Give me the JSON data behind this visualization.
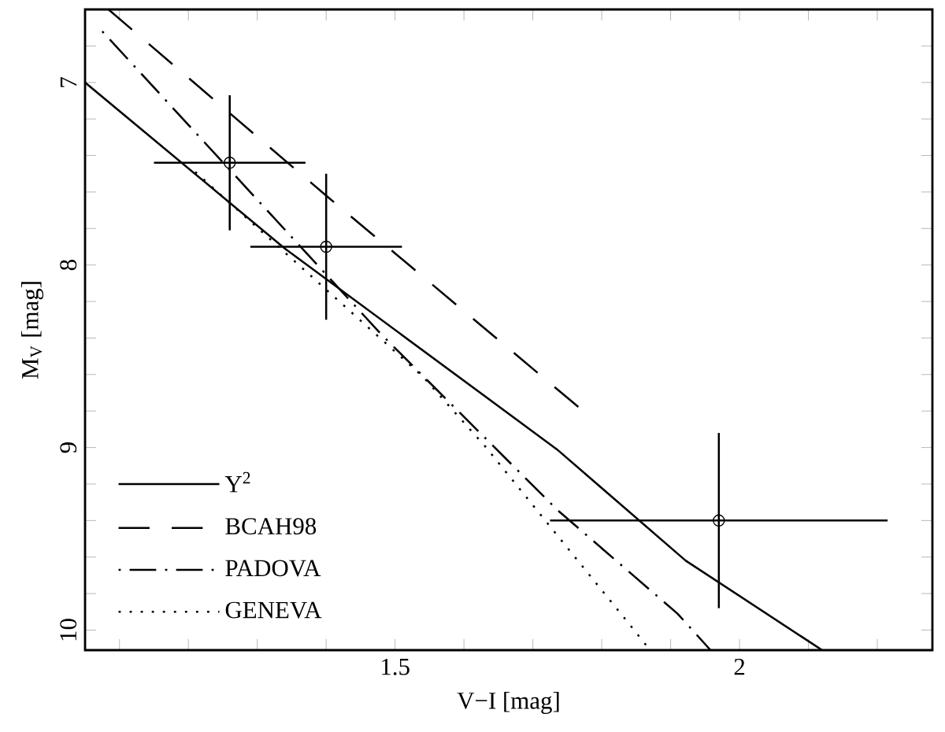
{
  "chart_data": {
    "type": "line",
    "xlabel": "V−I [mag]",
    "ylabel": "M$_{V}$ [mag]",
    "xlim": [
      1.05,
      2.28
    ],
    "ylim": [
      10.11,
      6.6
    ],
    "xticks": [
      {
        "value": 1.1,
        "label": null
      },
      {
        "value": 1.2,
        "label": null
      },
      {
        "value": 1.3,
        "label": null
      },
      {
        "value": 1.4,
        "label": null
      },
      1.5,
      {
        "value": 1.6,
        "label": null
      },
      {
        "value": 1.7,
        "label": null
      },
      {
        "value": 1.8,
        "label": null
      },
      {
        "value": 1.9,
        "label": null
      },
      2,
      {
        "value": 2.1,
        "label": null
      },
      {
        "value": 2.2,
        "label": null
      }
    ],
    "yticks": [
      {
        "value": 6.8,
        "label": null
      },
      7,
      {
        "value": 7.2,
        "label": null
      },
      {
        "value": 7.4,
        "label": null
      },
      {
        "value": 7.6,
        "label": null
      },
      {
        "value": 7.8,
        "label": null
      },
      8,
      {
        "value": 8.2,
        "label": null
      },
      {
        "value": 8.4,
        "label": null
      },
      {
        "value": 8.6,
        "label": null
      },
      {
        "value": 8.8,
        "label": null
      },
      9,
      {
        "value": 9.2,
        "label": null
      },
      {
        "value": 9.4,
        "label": null
      },
      {
        "value": 9.6,
        "label": null
      },
      {
        "value": 9.8,
        "label": null
      },
      10
    ],
    "legend": "bottom left",
    "grid": false,
    "series": [
      {
        "name": "Y$^{2}$",
        "line_style": "solid",
        "color": "#000000",
        "x": [
          1.05,
          1.34,
          1.735,
          1.922,
          2.12
        ],
        "values": [
          7.0,
          7.91,
          9.01,
          9.62,
          10.11
        ]
      },
      {
        "name": "BCAH98",
        "line_style": "dashed",
        "color": "#000000",
        "x": [
          1.084,
          1.4,
          1.77
        ],
        "values": [
          6.6,
          7.62,
          8.79
        ]
      },
      {
        "name": "PADOVA",
        "line_style": "dashdot",
        "color": "#000000",
        "x": [
          1.075,
          1.48,
          1.735,
          1.91,
          1.958
        ],
        "values": [
          6.72,
          8.38,
          9.34,
          9.91,
          10.11
        ]
      },
      {
        "name": "GENEVA",
        "line_style": "dotted",
        "color": "#000000",
        "x": [
          1.21,
          1.54,
          1.63,
          1.847,
          1.87
        ],
        "values": [
          7.49,
          8.61,
          8.99,
          10.0,
          10.11
        ]
      },
      {
        "type": "scatter",
        "marker": "circle",
        "color": "#000000",
        "x": [
          1.26,
          1.4,
          1.97
        ],
        "values": [
          7.44,
          7.9,
          9.4
        ],
        "errors": [
          0.37,
          0.4,
          0.48
        ],
        "xerrors": [
          0.11,
          0.11,
          0.245
        ]
      }
    ]
  }
}
